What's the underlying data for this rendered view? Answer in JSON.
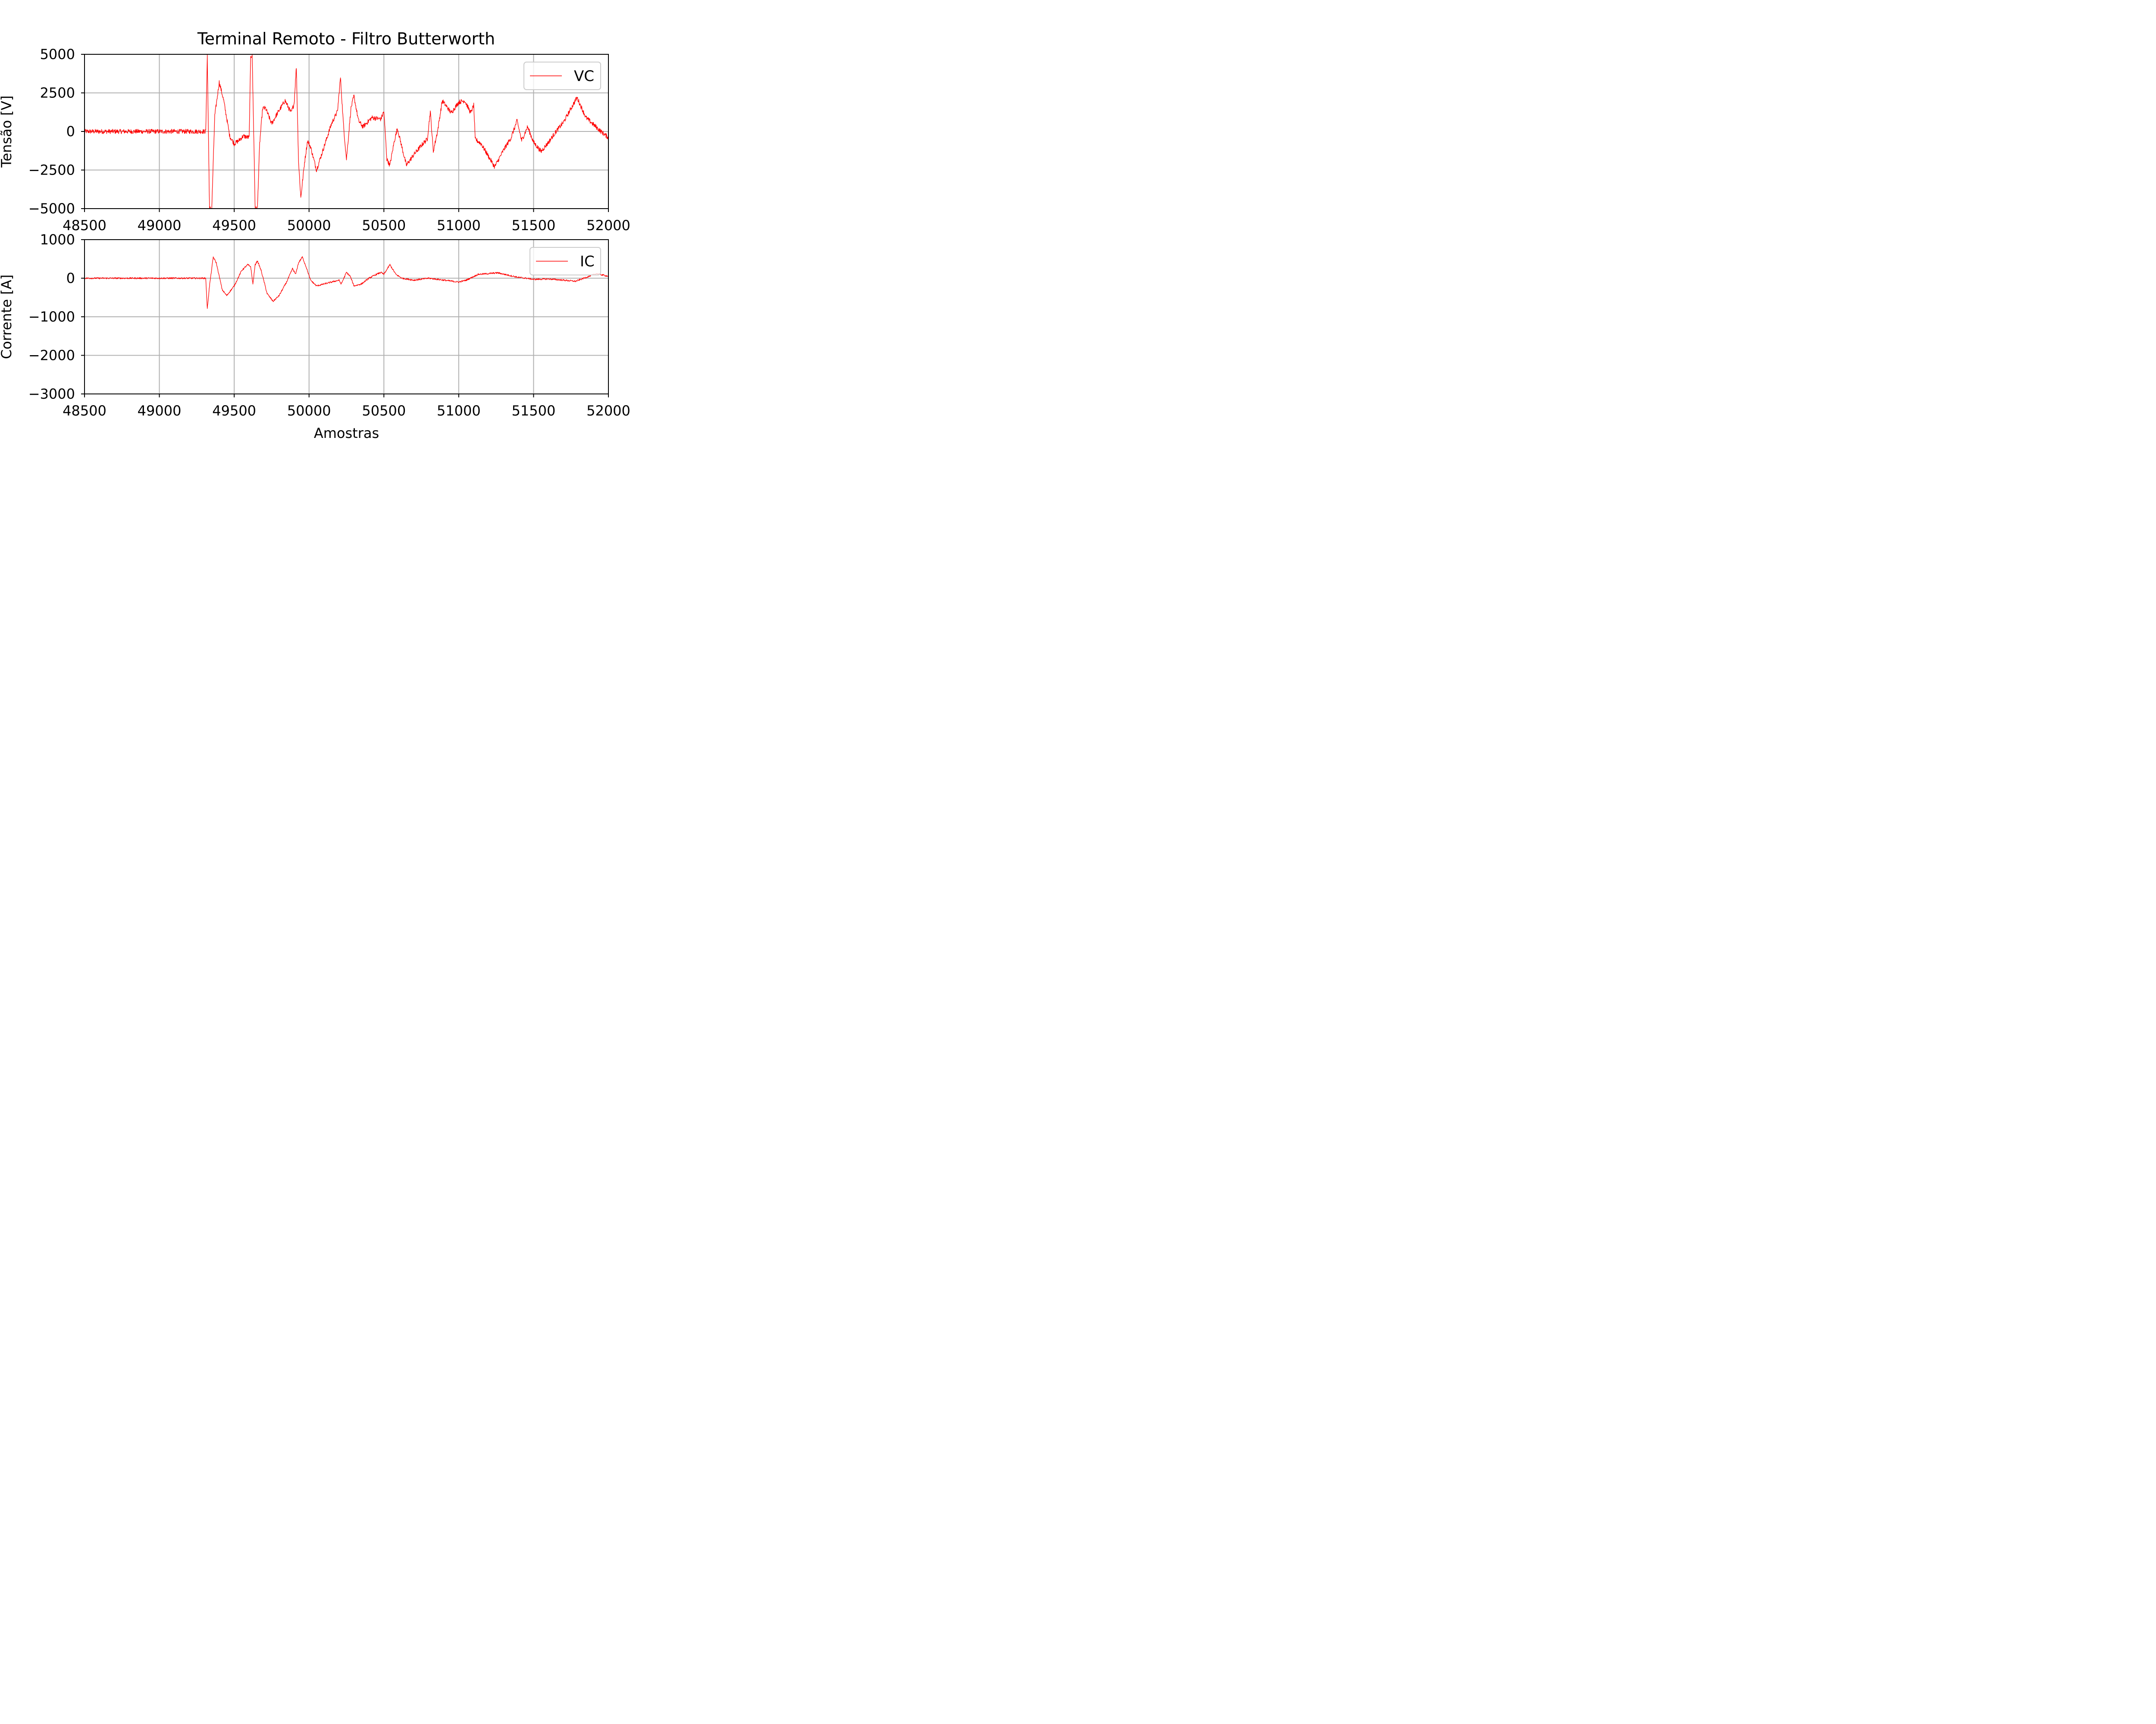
{
  "figure": {
    "title": "Terminal Remoto - Filtro Butterworth"
  },
  "chart_data": [
    {
      "type": "line",
      "title": "Terminal Remoto - Filtro Butterworth",
      "xlabel": "",
      "ylabel": "Tensão [V]",
      "xlim": [
        48500,
        52000
      ],
      "ylim": [
        -5000,
        5000
      ],
      "xticks": [
        48500,
        49000,
        49500,
        50000,
        50500,
        51000,
        51500,
        52000
      ],
      "yticks": [
        -5000,
        -2500,
        0,
        2500,
        5000
      ],
      "ytick_labels": [
        "−5000",
        "−2500",
        "0",
        "2500",
        "5000"
      ],
      "grid": true,
      "legend": {
        "placement": "upper-right",
        "entries": [
          "VC"
        ]
      },
      "series": [
        {
          "name": "VC",
          "color": "#ff0000",
          "noise": 300,
          "points": [
            [
              48500,
              0
            ],
            [
              49310,
              0
            ],
            [
              49320,
              5000
            ],
            [
              49335,
              -5000
            ],
            [
              49350,
              -5000
            ],
            [
              49370,
              1000
            ],
            [
              49400,
              3200
            ],
            [
              49430,
              2000
            ],
            [
              49470,
              -300
            ],
            [
              49500,
              -800
            ],
            [
              49530,
              -600
            ],
            [
              49560,
              -300
            ],
            [
              49600,
              -400
            ],
            [
              49610,
              4800
            ],
            [
              49620,
              5000
            ],
            [
              49640,
              -5000
            ],
            [
              49655,
              -5000
            ],
            [
              49670,
              -800
            ],
            [
              49690,
              1500
            ],
            [
              49710,
              1500
            ],
            [
              49750,
              500
            ],
            [
              49790,
              1200
            ],
            [
              49840,
              2000
            ],
            [
              49880,
              1200
            ],
            [
              49900,
              1800
            ],
            [
              49915,
              4200
            ],
            [
              49930,
              -2000
            ],
            [
              49945,
              -4300
            ],
            [
              49970,
              -2000
            ],
            [
              49990,
              -600
            ],
            [
              50010,
              -1000
            ],
            [
              50050,
              -2500
            ],
            [
              50100,
              -1000
            ],
            [
              50150,
              500
            ],
            [
              50190,
              1300
            ],
            [
              50210,
              3500
            ],
            [
              50230,
              400
            ],
            [
              50250,
              -1800
            ],
            [
              50280,
              1500
            ],
            [
              50300,
              2300
            ],
            [
              50330,
              700
            ],
            [
              50360,
              300
            ],
            [
              50420,
              900
            ],
            [
              50480,
              800
            ],
            [
              50500,
              1300
            ],
            [
              50520,
              -1800
            ],
            [
              50540,
              -2200
            ],
            [
              50570,
              -600
            ],
            [
              50590,
              200
            ],
            [
              50610,
              -600
            ],
            [
              50650,
              -2200
            ],
            [
              50700,
              -1500
            ],
            [
              50760,
              -800
            ],
            [
              50790,
              -500
            ],
            [
              50810,
              1300
            ],
            [
              50830,
              -1300
            ],
            [
              50860,
              100
            ],
            [
              50890,
              2000
            ],
            [
              50950,
              1200
            ],
            [
              51000,
              1900
            ],
            [
              51040,
              2000
            ],
            [
              51080,
              1200
            ],
            [
              51100,
              1700
            ],
            [
              51110,
              -500
            ],
            [
              51150,
              -800
            ],
            [
              51240,
              -2300
            ],
            [
              51300,
              -1200
            ],
            [
              51350,
              -400
            ],
            [
              51390,
              700
            ],
            [
              51420,
              -600
            ],
            [
              51460,
              300
            ],
            [
              51500,
              -700
            ],
            [
              51550,
              -1300
            ],
            [
              51600,
              -700
            ],
            [
              51650,
              0
            ],
            [
              51700,
              600
            ],
            [
              51790,
              2200
            ],
            [
              51850,
              900
            ],
            [
              51950,
              0
            ],
            [
              52000,
              -400
            ]
          ]
        }
      ]
    },
    {
      "type": "line",
      "title": "",
      "xlabel": "Amostras",
      "ylabel": "Corrente [A]",
      "xlim": [
        48500,
        52000
      ],
      "ylim": [
        -3000,
        1000
      ],
      "xticks": [
        48500,
        49000,
        49500,
        50000,
        50500,
        51000,
        51500,
        52000
      ],
      "yticks": [
        -3000,
        -2000,
        -1000,
        0,
        1000
      ],
      "ytick_labels": [
        "−3000",
        "−2000",
        "−1000",
        "0",
        "1000"
      ],
      "grid": true,
      "legend": {
        "placement": "upper-right",
        "entries": [
          "IC"
        ]
      },
      "series": [
        {
          "name": "IC",
          "color": "#ff0000",
          "noise": 40,
          "points": [
            [
              48500,
              0
            ],
            [
              49310,
              0
            ],
            [
              49320,
              -800
            ],
            [
              49335,
              -200
            ],
            [
              49360,
              550
            ],
            [
              49380,
              400
            ],
            [
              49420,
              -300
            ],
            [
              49450,
              -450
            ],
            [
              49500,
              -200
            ],
            [
              49550,
              200
            ],
            [
              49590,
              350
            ],
            [
              49610,
              300
            ],
            [
              49625,
              -150
            ],
            [
              49640,
              350
            ],
            [
              49655,
              450
            ],
            [
              49680,
              200
            ],
            [
              49720,
              -400
            ],
            [
              49760,
              -600
            ],
            [
              49800,
              -450
            ],
            [
              49850,
              -100
            ],
            [
              49890,
              250
            ],
            [
              49910,
              100
            ],
            [
              49930,
              400
            ],
            [
              49955,
              550
            ],
            [
              49980,
              300
            ],
            [
              50010,
              -50
            ],
            [
              50050,
              -200
            ],
            [
              50100,
              -150
            ],
            [
              50150,
              -100
            ],
            [
              50200,
              -50
            ],
            [
              50215,
              -150
            ],
            [
              50250,
              150
            ],
            [
              50275,
              50
            ],
            [
              50300,
              -200
            ],
            [
              50350,
              -150
            ],
            [
              50400,
              0
            ],
            [
              50450,
              100
            ],
            [
              50480,
              150
            ],
            [
              50500,
              100
            ],
            [
              50540,
              350
            ],
            [
              50580,
              100
            ],
            [
              50620,
              0
            ],
            [
              50700,
              -50
            ],
            [
              50800,
              0
            ],
            [
              50900,
              -50
            ],
            [
              51000,
              -100
            ],
            [
              51050,
              -50
            ],
            [
              51130,
              100
            ],
            [
              51200,
              120
            ],
            [
              51260,
              140
            ],
            [
              51330,
              80
            ],
            [
              51400,
              20
            ],
            [
              51450,
              0
            ],
            [
              51500,
              -30
            ],
            [
              51600,
              -20
            ],
            [
              51700,
              -50
            ],
            [
              51780,
              -80
            ],
            [
              51850,
              20
            ],
            [
              51920,
              120
            ],
            [
              52000,
              50
            ]
          ]
        }
      ]
    }
  ]
}
